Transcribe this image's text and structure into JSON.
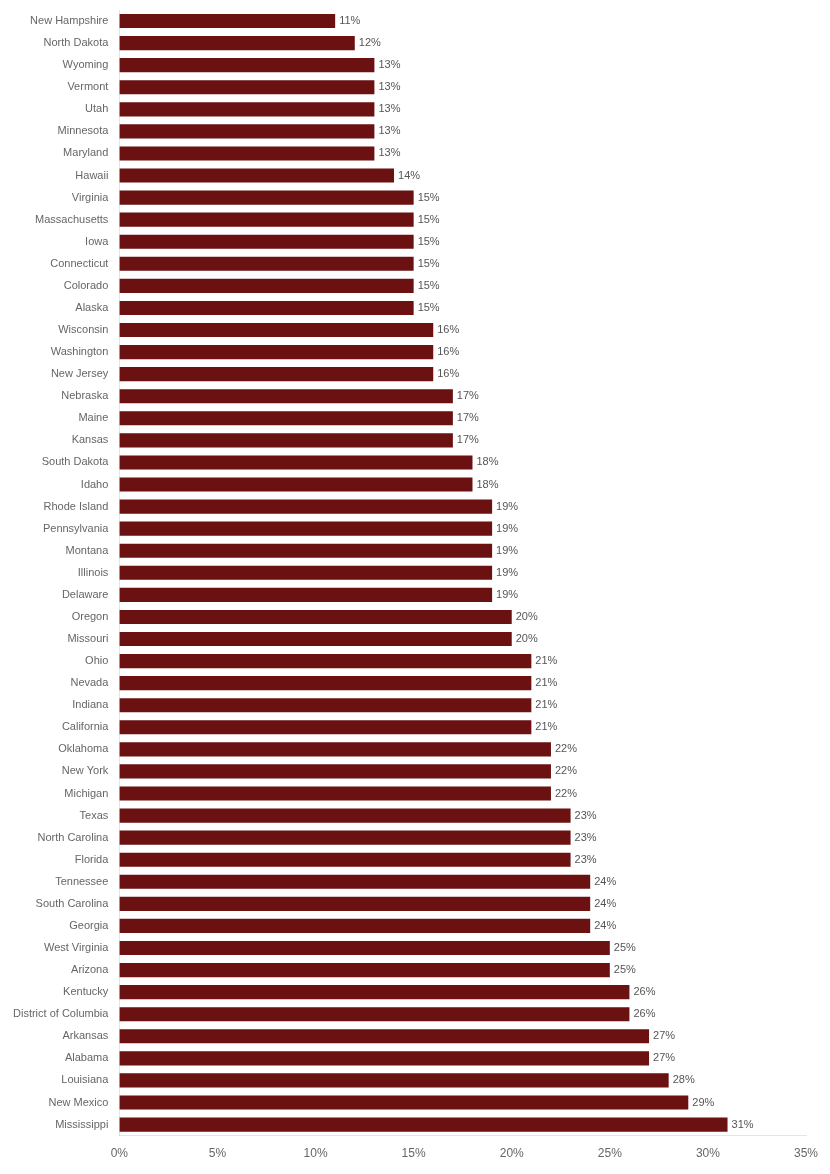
{
  "chart_data": {
    "type": "bar",
    "orientation": "horizontal",
    "categories": [
      "New Hampshire",
      "North Dakota",
      "Wyoming",
      "Vermont",
      "Utah",
      "Minnesota",
      "Maryland",
      "Hawaii",
      "Virginia",
      "Massachusetts",
      "Iowa",
      "Connecticut",
      "Colorado",
      "Alaska",
      "Wisconsin",
      "Washington",
      "New Jersey",
      "Nebraska",
      "Maine",
      "Kansas",
      "South Dakota",
      "Idaho",
      "Rhode Island",
      "Pennsylvania",
      "Montana",
      "Illinois",
      "Delaware",
      "Oregon",
      "Missouri",
      "Ohio",
      "Nevada",
      "Indiana",
      "California",
      "Oklahoma",
      "New York",
      "Michigan",
      "Texas",
      "North Carolina",
      "Florida",
      "Tennessee",
      "South Carolina",
      "Georgia",
      "West Virginia",
      "Arizona",
      "Kentucky",
      "District of Columbia",
      "Arkansas",
      "Alabama",
      "Louisiana",
      "New Mexico",
      "Mississippi"
    ],
    "values": [
      11,
      12,
      13,
      13,
      13,
      13,
      13,
      14,
      15,
      15,
      15,
      15,
      15,
      15,
      16,
      16,
      16,
      17,
      17,
      17,
      18,
      18,
      19,
      19,
      19,
      19,
      19,
      20,
      20,
      21,
      21,
      21,
      21,
      22,
      22,
      22,
      23,
      23,
      23,
      24,
      24,
      24,
      25,
      25,
      26,
      26,
      27,
      27,
      28,
      29,
      31
    ],
    "value_labels": [
      "11%",
      "12%",
      "13%",
      "13%",
      "13%",
      "13%",
      "13%",
      "14%",
      "15%",
      "15%",
      "15%",
      "15%",
      "15%",
      "15%",
      "16%",
      "16%",
      "16%",
      "17%",
      "17%",
      "17%",
      "18%",
      "18%",
      "19%",
      "19%",
      "19%",
      "19%",
      "19%",
      "20%",
      "20%",
      "21%",
      "21%",
      "21%",
      "21%",
      "22%",
      "22%",
      "22%",
      "23%",
      "23%",
      "23%",
      "24%",
      "24%",
      "24%",
      "25%",
      "25%",
      "26%",
      "26%",
      "27%",
      "27%",
      "28%",
      "29%",
      "31%"
    ],
    "color": "#6B1111",
    "xlim": [
      0,
      35
    ],
    "xticks": [
      {
        "value": 0,
        "label": "0%"
      },
      {
        "value": 5,
        "label": "5%"
      },
      {
        "value": 10,
        "label": "10%"
      },
      {
        "value": 15,
        "label": "15%"
      },
      {
        "value": 20,
        "label": "20%"
      },
      {
        "value": 25,
        "label": "25%"
      },
      {
        "value": 30,
        "label": "30%"
      },
      {
        "value": 35,
        "label": "35%"
      }
    ],
    "grid": false,
    "data_labels": true
  }
}
